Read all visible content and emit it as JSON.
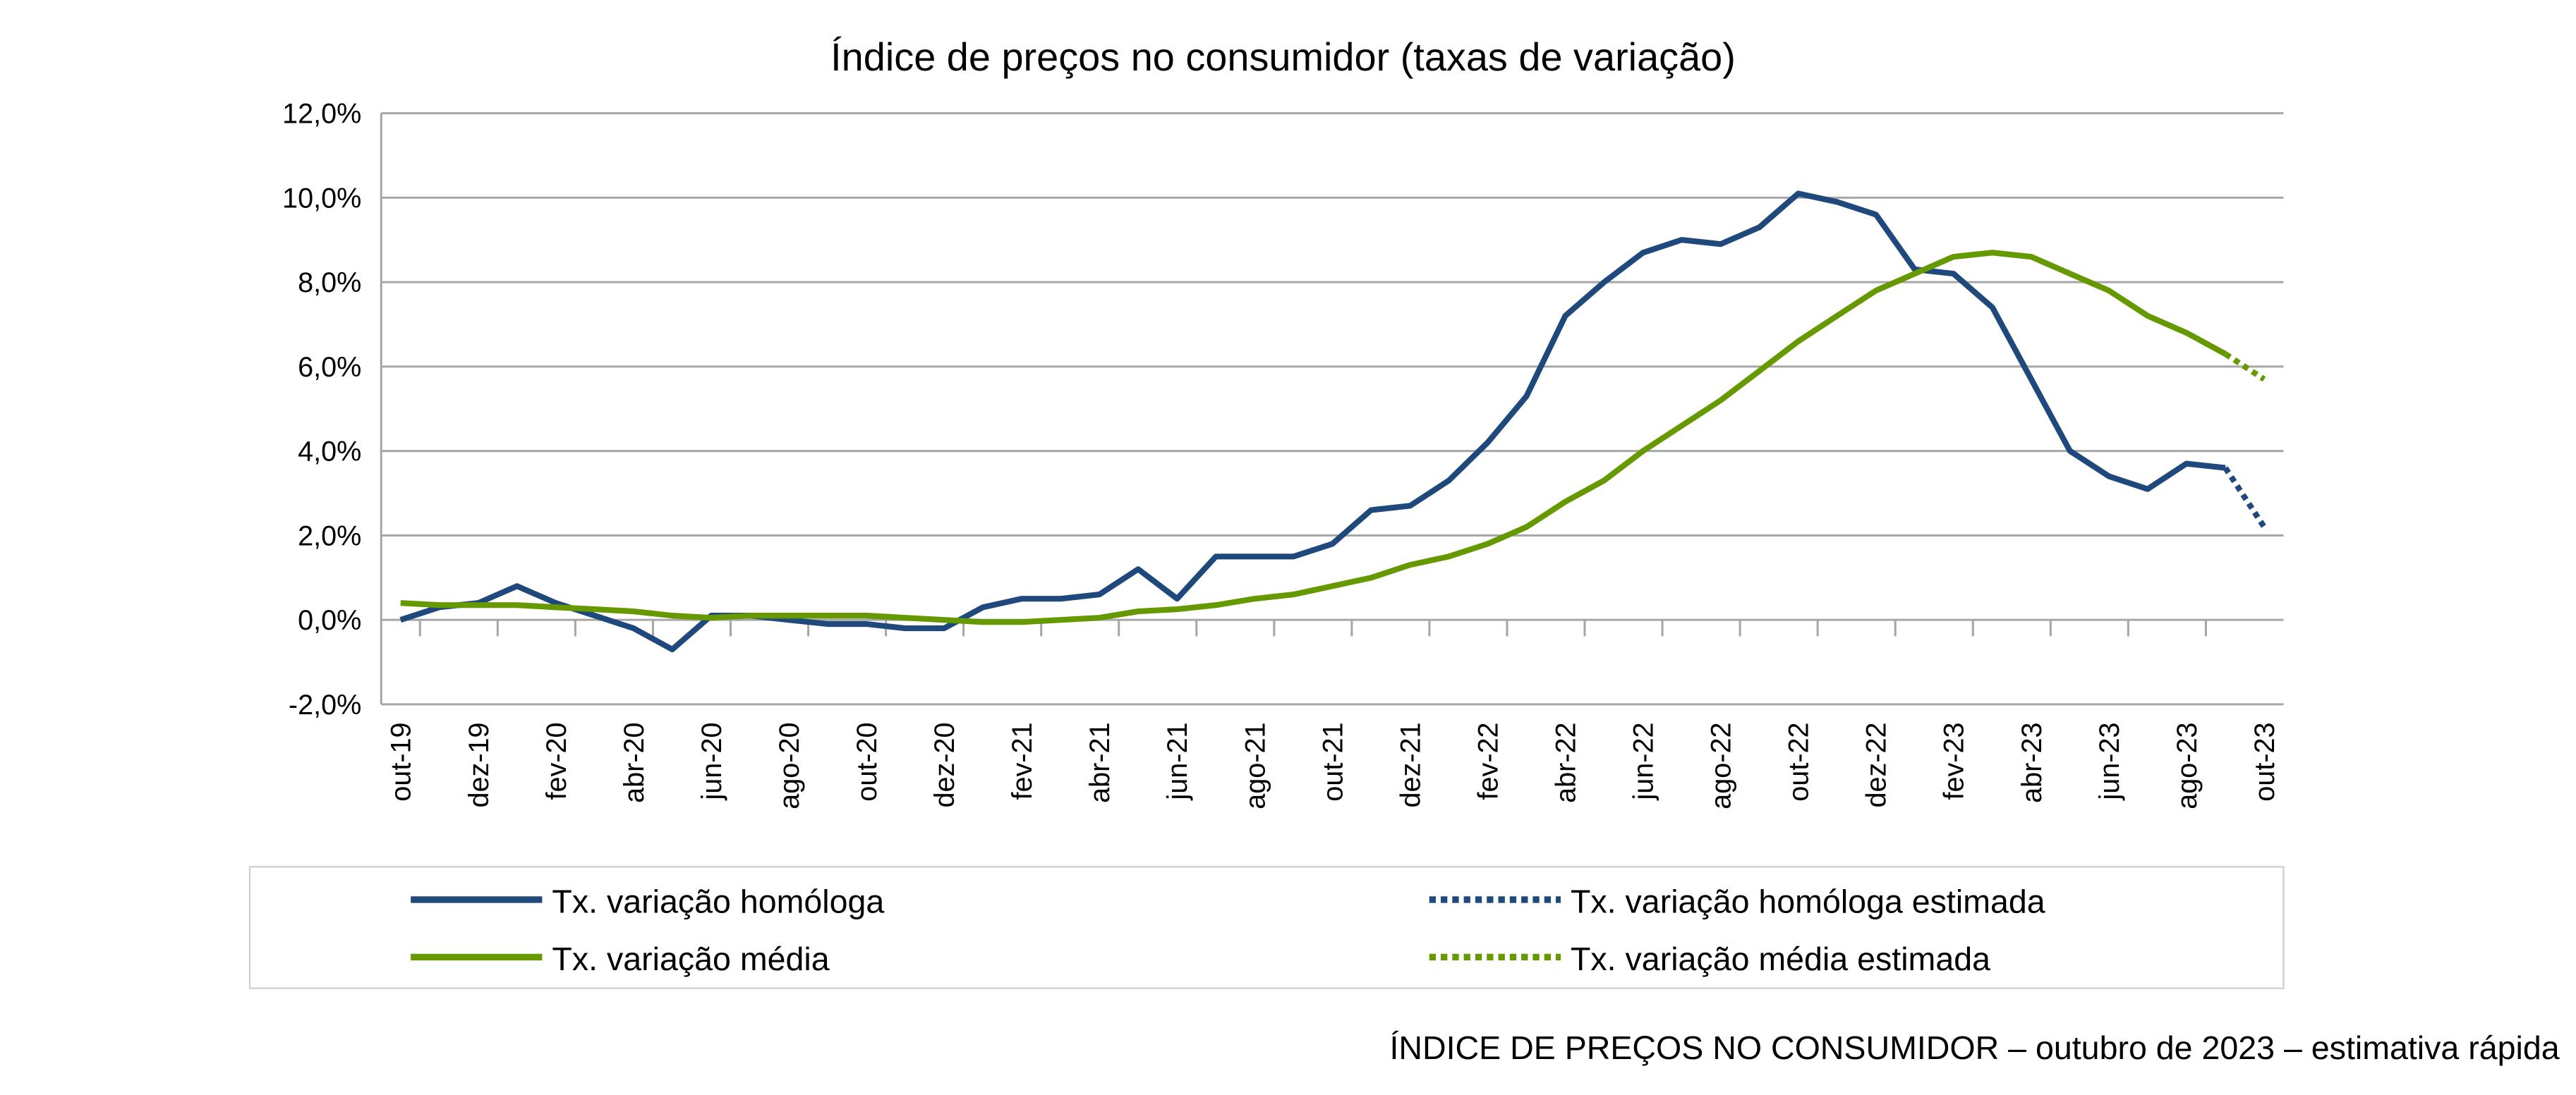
{
  "chart_data": {
    "type": "line",
    "title": "Índice de preços no consumidor  (taxas  de variação)",
    "xlabel": "",
    "ylabel": "",
    "ylim": [
      -2,
      12
    ],
    "yticks": [
      -2,
      0,
      2,
      4,
      6,
      8,
      10,
      12
    ],
    "ytick_labels": [
      "-2,0%",
      "0,0%",
      "2,0%",
      "4,0%",
      "6,0%",
      "8,0%",
      "10,0%",
      "12,0%"
    ],
    "grid": true,
    "legend_position": "bottom",
    "x": [
      "out-19",
      "nov-19",
      "dez-19",
      "jan-20",
      "fev-20",
      "mar-20",
      "abr-20",
      "mai-20",
      "jun-20",
      "jul-20",
      "ago-20",
      "set-20",
      "out-20",
      "nov-20",
      "dez-20",
      "jan-21",
      "fev-21",
      "mar-21",
      "abr-21",
      "mai-21",
      "jun-21",
      "jul-21",
      "ago-21",
      "set-21",
      "out-21",
      "nov-21",
      "dez-21",
      "jan-22",
      "fev-22",
      "mar-22",
      "abr-22",
      "mai-22",
      "jun-22",
      "jul-22",
      "ago-22",
      "set-22",
      "out-22",
      "nov-22",
      "dez-22",
      "jan-23",
      "fev-23",
      "mar-23",
      "abr-23",
      "mai-23",
      "jun-23",
      "jul-23",
      "ago-23",
      "set-23",
      "out-23"
    ],
    "xtick_labels": [
      "out-19",
      "dez-19",
      "fev-20",
      "abr-20",
      "jun-20",
      "ago-20",
      "out-20",
      "dez-20",
      "fev-21",
      "abr-21",
      "jun-21",
      "ago-21",
      "out-21",
      "dez-21",
      "fev-22",
      "abr-22",
      "jun-22",
      "ago-22",
      "out-22",
      "dez-22",
      "fev-23",
      "abr-23",
      "jun-23",
      "ago-23",
      "out-23"
    ],
    "series": [
      {
        "name": "Tx. variação homóloga",
        "color": "#1F497D",
        "style": "solid",
        "values": [
          0.0,
          0.3,
          0.4,
          0.8,
          0.4,
          0.1,
          -0.2,
          -0.7,
          0.1,
          0.1,
          0.0,
          -0.1,
          -0.1,
          -0.2,
          -0.2,
          0.3,
          0.5,
          0.5,
          0.6,
          1.2,
          0.5,
          1.5,
          1.5,
          1.5,
          1.8,
          2.6,
          2.7,
          3.3,
          4.2,
          5.3,
          7.2,
          8.0,
          8.7,
          9.0,
          8.9,
          9.3,
          10.1,
          9.9,
          9.6,
          8.3,
          8.2,
          7.4,
          5.7,
          4.0,
          3.4,
          3.1,
          3.7,
          3.6,
          null
        ]
      },
      {
        "name": "Tx. variação homóloga estimada",
        "color": "#1F497D",
        "style": "dotted",
        "values": [
          null,
          null,
          null,
          null,
          null,
          null,
          null,
          null,
          null,
          null,
          null,
          null,
          null,
          null,
          null,
          null,
          null,
          null,
          null,
          null,
          null,
          null,
          null,
          null,
          null,
          null,
          null,
          null,
          null,
          null,
          null,
          null,
          null,
          null,
          null,
          null,
          null,
          null,
          null,
          null,
          null,
          null,
          null,
          null,
          null,
          null,
          null,
          3.6,
          2.2
        ]
      },
      {
        "name": "Tx. variação média",
        "color": "#669900",
        "style": "solid",
        "values": [
          0.4,
          0.35,
          0.35,
          0.35,
          0.3,
          0.25,
          0.2,
          0.1,
          0.05,
          0.1,
          0.1,
          0.1,
          0.1,
          0.05,
          0.0,
          -0.05,
          -0.05,
          0.0,
          0.05,
          0.2,
          0.25,
          0.35,
          0.5,
          0.6,
          0.8,
          1.0,
          1.3,
          1.5,
          1.8,
          2.2,
          2.8,
          3.3,
          4.0,
          4.6,
          5.2,
          5.9,
          6.6,
          7.2,
          7.8,
          8.2,
          8.6,
          8.7,
          8.6,
          8.2,
          7.8,
          7.2,
          6.8,
          6.3,
          null
        ]
      },
      {
        "name": "Tx. variação média  estimada",
        "color": "#669900",
        "style": "dotted",
        "values": [
          null,
          null,
          null,
          null,
          null,
          null,
          null,
          null,
          null,
          null,
          null,
          null,
          null,
          null,
          null,
          null,
          null,
          null,
          null,
          null,
          null,
          null,
          null,
          null,
          null,
          null,
          null,
          null,
          null,
          null,
          null,
          null,
          null,
          null,
          null,
          null,
          null,
          null,
          null,
          null,
          null,
          null,
          null,
          null,
          null,
          null,
          null,
          6.3,
          5.7
        ]
      }
    ]
  },
  "footer": "ÍNDICE DE PREÇOS NO CONSUMIDOR – outubro de 2023 – estimativa rápida"
}
